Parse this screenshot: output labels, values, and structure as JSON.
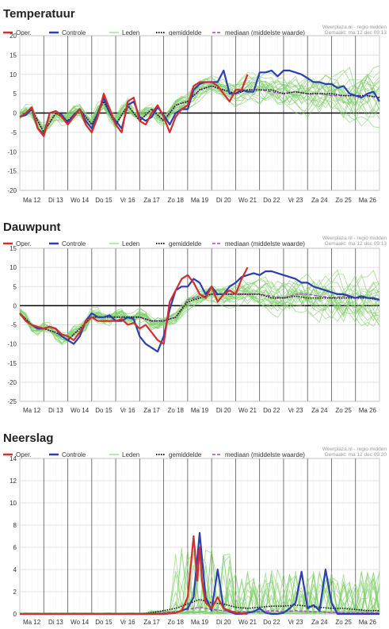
{
  "charts": [
    {
      "title": "Temperatuur"
    },
    {
      "title": "Dauwpunt"
    },
    {
      "title": "Neerslag"
    }
  ],
  "legend": {
    "oper": "Oper.",
    "controle": "Controle",
    "leden": "Leden",
    "gemiddelde": "gemiddelde",
    "mediaan": "mediaan (middelste waarde)"
  },
  "credits": [
    {
      "line1": "Weerplaza.nl - regio midden",
      "line2": "Gemaakt: ma 12 dec 09:13"
    },
    {
      "line1": "Weerplaza.nl - regio midden",
      "line2": "Gemaakt: ma 12 dec 09:13"
    },
    {
      "line1": "Weerplaza.nl - regio midden",
      "line2": "Gemaakt: ma 12 dec 09:20"
    }
  ],
  "colors": {
    "oper": "#d62e2e",
    "controle": "#2b3fb0",
    "leden": "#7fcf6a",
    "gemiddelde": "#111111",
    "mediaan": "#b23bd4",
    "grid": "#e2e2e2",
    "daylines": "#555555"
  },
  "chart_data": [
    {
      "type": "line",
      "title": "Temperatuur",
      "categories": [
        "Ma 12",
        "Di 13",
        "Wo 14",
        "Do 15",
        "Vr 16",
        "Za 17",
        "Zo 18",
        "Ma 19",
        "Di 20",
        "Wo 21",
        "Do 22",
        "Vr 23",
        "Za 24",
        "Zo 25",
        "Ma 26"
      ],
      "ylim": [
        -20,
        20
      ],
      "yticks": [
        -20,
        -15,
        -10,
        -5,
        0,
        5,
        10,
        15,
        20
      ],
      "grid": true,
      "legend_position": "top",
      "series": [
        {
          "name": "Oper.",
          "x": [
            0,
            0.25,
            0.5,
            0.75,
            1,
            1.25,
            1.5,
            1.75,
            2,
            2.25,
            2.5,
            2.75,
            3,
            3.25,
            3.5,
            3.75,
            4,
            4.25,
            4.5,
            4.75,
            5,
            5.25,
            5.5,
            5.75,
            6,
            6.25,
            6.5,
            6.75,
            7,
            7.25,
            7.5,
            7.75,
            8,
            8.25,
            8.5,
            8.75,
            9,
            9.25,
            9.5
          ],
          "values": [
            -1,
            0,
            1.5,
            -4,
            -6,
            0,
            0.5,
            -1,
            -3,
            -1,
            1,
            -3,
            -5,
            -1,
            5,
            1,
            -3,
            -5,
            3,
            4,
            -2,
            -3,
            0,
            2,
            -1,
            -5,
            -1,
            1,
            2,
            7,
            8,
            8,
            8,
            7,
            5,
            3,
            6,
            6,
            10
          ]
        },
        {
          "name": "Controle",
          "x": [
            0,
            0.25,
            0.5,
            0.75,
            1,
            1.25,
            1.5,
            1.75,
            2,
            2.25,
            2.5,
            2.75,
            3,
            3.25,
            3.5,
            3.75,
            4,
            4.25,
            4.5,
            4.75,
            5,
            5.25,
            5.5,
            5.75,
            6,
            6.25,
            6.5,
            6.75,
            7,
            7.25,
            7.5,
            7.75,
            8,
            8.25,
            8.5,
            8.75,
            9,
            9.25,
            9.5,
            9.75,
            10,
            10.25,
            10.5,
            10.75,
            11,
            11.25,
            11.5,
            11.75,
            12,
            12.25,
            12.5,
            12.75,
            13,
            13.25,
            13.5,
            13.75,
            14,
            14.25,
            14.5,
            14.75,
            15
          ],
          "values": [
            -1,
            -0.5,
            1,
            -4,
            -5.5,
            0,
            0.5,
            -0.5,
            -2.5,
            -0.5,
            1,
            -2,
            -4,
            0,
            4,
            0,
            -2,
            -4,
            2,
            3,
            -1,
            -2,
            -1,
            1.5,
            -0.5,
            -3,
            0,
            1,
            1,
            6,
            7.5,
            8,
            8,
            8,
            11,
            5,
            5,
            6,
            5.5,
            5.5,
            10.5,
            10.5,
            11,
            9.5,
            11,
            11,
            10.5,
            10,
            9,
            8,
            8,
            7.5,
            7.5,
            6.5,
            7,
            5,
            4.5,
            4,
            5,
            5.5,
            3
          ]
        },
        {
          "name": "gemiddelde",
          "x": [
            0,
            0.5,
            1,
            1.5,
            2,
            2.5,
            3,
            3.5,
            4,
            4.5,
            5,
            5.5,
            6,
            6.5,
            7,
            7.5,
            8,
            8.5,
            9,
            9.5,
            10,
            10.5,
            11,
            11.5,
            12,
            12.5,
            13,
            13.5,
            14,
            14.5,
            15
          ],
          "values": [
            -1,
            1,
            -5,
            0,
            -2,
            1,
            -3,
            3,
            -3,
            2,
            -2,
            1,
            -2,
            2,
            3,
            6,
            7,
            6,
            5,
            6,
            6,
            6,
            5,
            5.5,
            5,
            5,
            5,
            4.5,
            4.5,
            4.5,
            4
          ]
        },
        {
          "name": "mediaan (middelste waarde)",
          "x": [
            0,
            0.5,
            1,
            1.5,
            2,
            2.5,
            3,
            3.5,
            4,
            4.5,
            5,
            5.5,
            6,
            6.5,
            7,
            7.5,
            8,
            8.5,
            9,
            9.5,
            10,
            10.5,
            11,
            11.5,
            12,
            12.5,
            13,
            13.5,
            14,
            14.5,
            15
          ],
          "values": [
            -1,
            1,
            -5,
            0,
            -2,
            1,
            -3,
            3,
            -3,
            2,
            -2,
            1,
            -2,
            2,
            3,
            6,
            7,
            6,
            5,
            6,
            6,
            5.5,
            5,
            5.5,
            5,
            5,
            4.5,
            4.5,
            4.5,
            4.5,
            4
          ]
        }
      ]
    },
    {
      "type": "line",
      "title": "Dauwpunt",
      "categories": [
        "Ma 12",
        "Di 13",
        "Wo 14",
        "Do 15",
        "Vr 16",
        "Za 17",
        "Zo 18",
        "Ma 19",
        "Di 20",
        "Wo 21",
        "Do 22",
        "Vr 23",
        "Za 24",
        "Zo 25",
        "Ma 26"
      ],
      "ylim": [
        -25,
        15
      ],
      "yticks": [
        -25,
        -20,
        -15,
        -10,
        -5,
        0,
        5,
        10,
        15
      ],
      "grid": true,
      "legend_position": "top",
      "series": [
        {
          "name": "Oper.",
          "x": [
            0,
            0.25,
            0.5,
            0.75,
            1,
            1.25,
            1.5,
            1.75,
            2,
            2.25,
            2.5,
            2.75,
            3,
            3.25,
            3.5,
            3.75,
            4,
            4.25,
            4.5,
            4.75,
            5,
            5.25,
            5.5,
            5.75,
            6,
            6.25,
            6.5,
            6.75,
            7,
            7.25,
            7.5,
            7.75,
            8,
            8.25,
            8.5,
            8.75,
            9,
            9.25,
            9.5
          ],
          "values": [
            -2,
            -4,
            -5,
            -5.5,
            -6,
            -5.5,
            -6,
            -7.5,
            -8,
            -9,
            -7,
            -4,
            -3,
            -4,
            -4,
            -4,
            -4,
            -3.5,
            -5,
            -4.5,
            -6,
            -5,
            -7,
            -9,
            -10,
            1,
            4,
            7,
            8,
            6,
            3,
            2,
            5,
            1,
            3,
            4,
            3,
            7,
            10
          ]
        },
        {
          "name": "Controle",
          "x": [
            0,
            0.25,
            0.5,
            0.75,
            1,
            1.25,
            1.5,
            1.75,
            2,
            2.25,
            2.5,
            2.75,
            3,
            3.25,
            3.5,
            3.75,
            4,
            4.25,
            4.5,
            4.75,
            5,
            5.25,
            5.5,
            5.75,
            6,
            6.25,
            6.5,
            6.75,
            7,
            7.25,
            7.5,
            7.75,
            8,
            8.25,
            8.5,
            8.75,
            9,
            9.25,
            9.5,
            9.75,
            10,
            10.25,
            10.5,
            10.75,
            11,
            11.25,
            11.5,
            11.75,
            12,
            12.25,
            12.5,
            12.75,
            13,
            13.25,
            13.5,
            13.75,
            14,
            14.25,
            14.5,
            14.75,
            15
          ],
          "values": [
            -2,
            -4,
            -5,
            -6,
            -6,
            -5.5,
            -6,
            -8,
            -9,
            -10,
            -8,
            -4,
            -2,
            -3,
            -3,
            -2.5,
            -4,
            -4,
            -3,
            -3.5,
            -8,
            -10,
            -11,
            -12,
            -8,
            -1,
            4,
            5,
            5,
            7,
            6,
            3,
            5,
            3,
            3,
            5,
            6,
            7.5,
            8,
            8.5,
            8,
            9,
            9,
            8.5,
            8,
            7.5,
            7,
            6,
            6,
            5,
            4.5,
            4,
            3.5,
            3,
            3,
            2.5,
            2,
            2.5,
            2,
            2,
            1.5
          ]
        },
        {
          "name": "gemiddelde",
          "x": [
            0,
            0.5,
            1,
            1.5,
            2,
            2.5,
            3,
            3.5,
            4,
            4.5,
            5,
            5.5,
            6,
            6.5,
            7,
            7.5,
            8,
            8.5,
            9,
            9.5,
            10,
            10.5,
            11,
            11.5,
            12,
            12.5,
            13,
            13.5,
            14,
            14.5,
            15
          ],
          "values": [
            -2,
            -5,
            -6,
            -7,
            -9,
            -6,
            -3,
            -3,
            -3,
            -3,
            -3,
            -4,
            -4,
            -3,
            1,
            2,
            3,
            3,
            3,
            3,
            3,
            2,
            2,
            2.5,
            2,
            2,
            2,
            2,
            2,
            2,
            1.5
          ]
        },
        {
          "name": "mediaan (middelste waarde)",
          "x": [
            0,
            0.5,
            1,
            1.5,
            2,
            2.5,
            3,
            3.5,
            4,
            4.5,
            5,
            5.5,
            6,
            6.5,
            7,
            7.5,
            8,
            8.5,
            9,
            9.5,
            10,
            10.5,
            11,
            11.5,
            12,
            12.5,
            13,
            13.5,
            14,
            14.5,
            15
          ],
          "values": [
            -2,
            -5,
            -6,
            -7,
            -9,
            -6,
            -3,
            -3,
            -3,
            -3,
            -3,
            -4,
            -4,
            -3,
            1.5,
            2.5,
            3,
            3,
            3,
            3,
            3,
            2.5,
            2,
            3,
            3,
            2.5,
            2,
            2.5,
            2,
            2,
            1.5
          ]
        }
      ]
    },
    {
      "type": "line",
      "title": "Neerslag",
      "categories": [
        "Ma 12",
        "Di 13",
        "Wo 14",
        "Do 15",
        "Vr 16",
        "Za 17",
        "Zo 18",
        "Ma 19",
        "Di 20",
        "Wo 21",
        "Do 22",
        "Vr 23",
        "Za 24",
        "Zo 25",
        "Ma 26"
      ],
      "ylim": [
        0,
        14
      ],
      "yticks": [
        0,
        2,
        4,
        6,
        8,
        10,
        12,
        14
      ],
      "grid": true,
      "legend_position": "top",
      "series": [
        {
          "name": "Oper.",
          "x": [
            0,
            1,
            2,
            3,
            4,
            5,
            6,
            6.5,
            6.75,
            7,
            7.25,
            7.4,
            7.5,
            7.6,
            7.75,
            8,
            8.25,
            8.5,
            8.75,
            9,
            9.5
          ],
          "values": [
            0,
            0,
            0,
            0,
            0,
            0,
            0,
            0.1,
            0.3,
            1.5,
            7,
            3,
            6,
            3,
            1,
            0.5,
            1.5,
            0.5,
            0.3,
            0.1,
            0
          ]
        },
        {
          "name": "Controle",
          "x": [
            0,
            1,
            2,
            3,
            4,
            5,
            6,
            6.5,
            7,
            7.25,
            7.5,
            7.6,
            7.75,
            8,
            8.25,
            8.5,
            8.75,
            9,
            9.25,
            9.5,
            9.75,
            10,
            10.25,
            10.5,
            10.75,
            11,
            11.25,
            11.5,
            11.75,
            12,
            12.25,
            12.5,
            12.75,
            13,
            13.25,
            13.5,
            13.75,
            14,
            14.25,
            14.5,
            14.75,
            15
          ],
          "values": [
            0,
            0,
            0,
            0,
            0,
            0,
            0,
            0.1,
            0.5,
            1.5,
            7.3,
            5,
            1.5,
            0.3,
            4,
            0.5,
            0.2,
            0,
            0,
            0.1,
            0.2,
            0.5,
            0.1,
            0,
            0,
            0.1,
            0.5,
            1,
            3.8,
            0.5,
            0.8,
            0.3,
            4,
            1,
            0,
            0,
            0,
            0,
            0,
            0,
            0,
            0
          ]
        },
        {
          "name": "gemiddelde",
          "x": [
            0,
            1,
            2,
            3,
            4,
            5,
            5.5,
            6,
            6.5,
            7,
            7.5,
            8,
            8.5,
            9,
            9.5,
            10,
            10.5,
            11,
            11.5,
            12,
            12.5,
            13,
            13.5,
            14,
            14.5,
            15
          ],
          "values": [
            0,
            0,
            0,
            0,
            0,
            0,
            0.1,
            0.3,
            0.5,
            0.9,
            1.3,
            1.0,
            0.9,
            0.6,
            0.5,
            0.6,
            0.7,
            0.7,
            0.8,
            0.7,
            0.6,
            0.5,
            0.5,
            0.4,
            0.3,
            0.3
          ]
        },
        {
          "name": "mediaan (middelste waarde)",
          "x": [
            0,
            1,
            2,
            3,
            4,
            5,
            5.5,
            6,
            6.5,
            7,
            7.5,
            8,
            8.5,
            9,
            9.5,
            10,
            10.5,
            11,
            11.5,
            12,
            12.5,
            13,
            13.5,
            14,
            14.5,
            15
          ],
          "values": [
            0,
            0,
            0,
            0,
            0,
            0,
            0,
            0.1,
            0.2,
            0.4,
            0.6,
            0.4,
            0.3,
            0.2,
            0.2,
            0.2,
            0.3,
            0.2,
            0.3,
            0.2,
            0.2,
            0.1,
            0.1,
            0.1,
            0.1,
            0.1
          ]
        }
      ]
    }
  ]
}
